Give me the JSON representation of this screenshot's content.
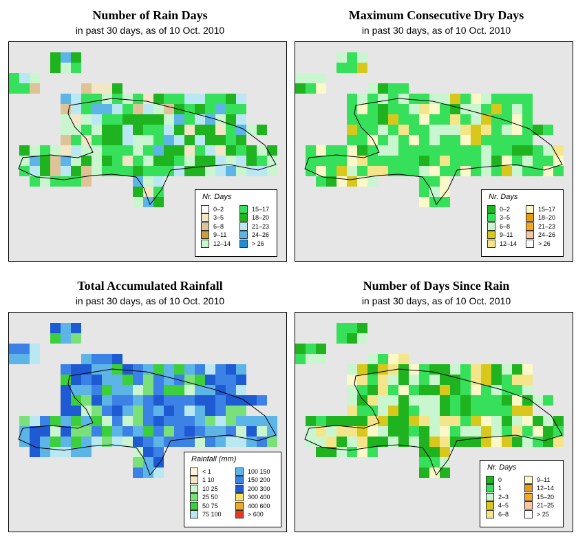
{
  "panels": [
    {
      "id": "rain_days",
      "title": "Number of Rain Days",
      "subtitle": "in past 30 days, as of  10 Oct. 2010",
      "legend": {
        "title": "Nr. Days",
        "items": [
          {
            "label": "0–2",
            "color": "#ffffff"
          },
          {
            "label": "3–5",
            "color": "#f3e6c6"
          },
          {
            "label": "6–8",
            "color": "#dec396"
          },
          {
            "label": "9–11",
            "color": "#c9a13c"
          },
          {
            "label": "12–14",
            "color": "#c9f5cf"
          },
          {
            "label": "15–17",
            "color": "#37e05a"
          },
          {
            "label": "18–20",
            "color": "#1fb31f"
          },
          {
            "label": "21–23",
            "color": "#b9e8f3"
          },
          {
            "label": "24–26",
            "color": "#5cb5e6"
          },
          {
            "label": "> 26",
            "color": "#1e8fd6"
          }
        ]
      }
    },
    {
      "id": "max_dry",
      "title": "Maximum Consecutive Dry Days",
      "subtitle": "in past 30 days, as of  10 Oct. 2010",
      "legend": {
        "title": "Nr. Days",
        "items": [
          {
            "label": "0–2",
            "color": "#1fb31f"
          },
          {
            "label": "3–5",
            "color": "#37e05a"
          },
          {
            "label": "6–8",
            "color": "#c9f5cf"
          },
          {
            "label": "9–11",
            "color": "#d8c81e"
          },
          {
            "label": "12–14",
            "color": "#f5e58a"
          },
          {
            "label": "15–17",
            "color": "#fcf9c8"
          },
          {
            "label": "18–20",
            "color": "#e69a10"
          },
          {
            "label": "21–23",
            "color": "#f5a623"
          },
          {
            "label": "24–26",
            "color": "#f7c6a0"
          },
          {
            "label": "> 26",
            "color": "#ffffff"
          }
        ]
      }
    },
    {
      "id": "total_rain",
      "title": "Total Accumulated Rainfall",
      "subtitle": "in past 30 days, as of  10 Oct. 2010",
      "legend": {
        "title": "Rainfall (mm)",
        "items": [
          {
            "label": "< 1",
            "color": "#fff5dc"
          },
          {
            "label": "1    10",
            "color": "#f6e6c3"
          },
          {
            "label": "10   25",
            "color": "#c9f5cf"
          },
          {
            "label": "25   50",
            "color": "#7ae07a"
          },
          {
            "label": "50   75",
            "color": "#3ccf3c"
          },
          {
            "label": "75  100",
            "color": "#b9e8f3"
          },
          {
            "label": "100  150",
            "color": "#5cb5e6"
          },
          {
            "label": "150  200",
            "color": "#3c82e6"
          },
          {
            "label": "200  300",
            "color": "#1e5ad2"
          },
          {
            "label": "300  400",
            "color": "#f5e070"
          },
          {
            "label": "400  600",
            "color": "#f5a623"
          },
          {
            "label": "> 600",
            "color": "#e63c1e"
          }
        ]
      }
    },
    {
      "id": "since_rain",
      "title": "Number of Days Since Rain",
      "subtitle": "in past 30 days, as of  10 Oct. 2010",
      "legend": {
        "title": "Nr. Days",
        "items": [
          {
            "label": "0",
            "color": "#1fb31f"
          },
          {
            "label": "1",
            "color": "#37e05a"
          },
          {
            "label": "2–3",
            "color": "#c9f5cf"
          },
          {
            "label": "4–5",
            "color": "#d8c81e"
          },
          {
            "label": "6–8",
            "color": "#f5e58a"
          },
          {
            "label": "9–11",
            "color": "#fcf9c8"
          },
          {
            "label": "12–14",
            "color": "#e69a10"
          },
          {
            "label": "15–20",
            "color": "#f5a623"
          },
          {
            "label": "21–25",
            "color": "#f7c6a0"
          },
          {
            "label": "> 25",
            "color": "#ffffff"
          }
        ]
      }
    }
  ]
}
